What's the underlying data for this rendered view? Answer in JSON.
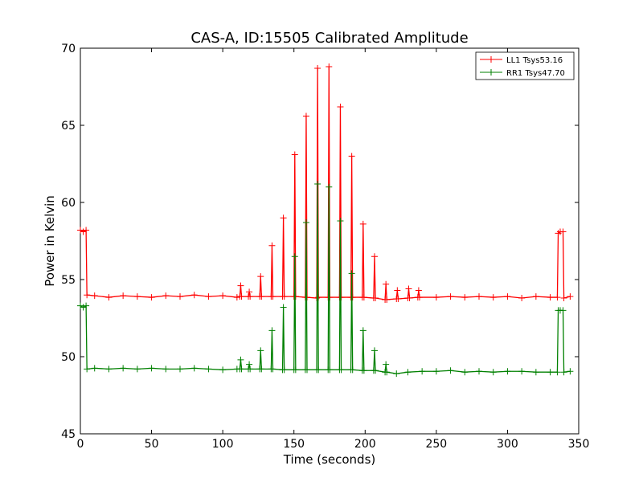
{
  "chart_data": {
    "type": "line",
    "title": "CAS-A, ID:15505 Calibrated Amplitude",
    "xlabel": "Time (seconds)",
    "ylabel": "Power in Kelvin",
    "xlim": [
      0,
      350
    ],
    "ylim": [
      45,
      70
    ],
    "xticks": [
      0,
      50,
      100,
      150,
      200,
      250,
      300,
      350
    ],
    "yticks": [
      45,
      50,
      55,
      60,
      65,
      70
    ],
    "grid": false,
    "legend_position": "top-right",
    "series": [
      {
        "name": "LL1 Tsys53.16",
        "color": "#ff0000",
        "marker": "+",
        "points": [
          [
            0,
            58.2
          ],
          [
            2,
            58.1
          ],
          [
            4,
            58.2
          ],
          [
            4.6,
            54.0
          ],
          [
            10,
            53.95
          ],
          [
            20,
            53.85
          ],
          [
            30,
            53.95
          ],
          [
            40,
            53.9
          ],
          [
            50,
            53.85
          ],
          [
            60,
            53.95
          ],
          [
            70,
            53.9
          ],
          [
            80,
            54.0
          ],
          [
            90,
            53.9
          ],
          [
            100,
            53.95
          ],
          [
            110,
            53.85
          ],
          [
            112,
            53.9
          ],
          [
            112.6,
            54.6
          ],
          [
            113.2,
            53.9
          ],
          [
            118,
            53.9
          ],
          [
            118.6,
            54.2
          ],
          [
            119.2,
            53.9
          ],
          [
            126,
            53.9
          ],
          [
            126.6,
            55.2
          ],
          [
            127.2,
            53.9
          ],
          [
            134,
            53.9
          ],
          [
            134.6,
            57.2
          ],
          [
            135.2,
            53.9
          ],
          [
            142,
            53.9
          ],
          [
            142.6,
            59.0
          ],
          [
            143.2,
            53.9
          ],
          [
            150,
            53.9
          ],
          [
            150.6,
            63.1
          ],
          [
            151.2,
            53.9
          ],
          [
            158,
            53.85
          ],
          [
            158.6,
            65.6
          ],
          [
            159.2,
            53.85
          ],
          [
            166,
            53.8
          ],
          [
            166.6,
            68.7
          ],
          [
            167.2,
            53.85
          ],
          [
            174,
            53.85
          ],
          [
            174.6,
            68.8
          ],
          [
            175.2,
            53.85
          ],
          [
            182,
            53.85
          ],
          [
            182.6,
            66.2
          ],
          [
            183.2,
            53.85
          ],
          [
            190,
            53.85
          ],
          [
            190.6,
            63.0
          ],
          [
            191.2,
            53.85
          ],
          [
            198,
            53.85
          ],
          [
            198.6,
            58.6
          ],
          [
            199.2,
            53.85
          ],
          [
            206,
            53.8
          ],
          [
            206.6,
            56.5
          ],
          [
            207.2,
            53.8
          ],
          [
            214,
            53.7
          ],
          [
            214.6,
            54.7
          ],
          [
            215.2,
            53.7
          ],
          [
            222,
            53.75
          ],
          [
            222.6,
            54.3
          ],
          [
            223.2,
            53.75
          ],
          [
            230,
            53.8
          ],
          [
            230.6,
            54.4
          ],
          [
            231.2,
            53.8
          ],
          [
            237,
            53.85
          ],
          [
            237.6,
            54.3
          ],
          [
            238.2,
            53.85
          ],
          [
            250,
            53.85
          ],
          [
            260,
            53.9
          ],
          [
            270,
            53.85
          ],
          [
            280,
            53.9
          ],
          [
            290,
            53.85
          ],
          [
            300,
            53.9
          ],
          [
            310,
            53.8
          ],
          [
            320,
            53.9
          ],
          [
            330,
            53.85
          ],
          [
            335,
            53.85
          ],
          [
            335.6,
            58.0
          ],
          [
            337,
            58.1
          ],
          [
            339,
            58.1
          ],
          [
            339.6,
            53.8
          ],
          [
            344,
            53.9
          ]
        ]
      },
      {
        "name": "RR1 Tsys47.70",
        "color": "#008000",
        "marker": "+",
        "points": [
          [
            0,
            53.3
          ],
          [
            2,
            53.2
          ],
          [
            4,
            53.3
          ],
          [
            4.6,
            49.2
          ],
          [
            10,
            49.25
          ],
          [
            20,
            49.2
          ],
          [
            30,
            49.25
          ],
          [
            40,
            49.2
          ],
          [
            50,
            49.25
          ],
          [
            60,
            49.2
          ],
          [
            70,
            49.2
          ],
          [
            80,
            49.25
          ],
          [
            90,
            49.2
          ],
          [
            100,
            49.15
          ],
          [
            110,
            49.2
          ],
          [
            112,
            49.2
          ],
          [
            112.6,
            49.8
          ],
          [
            113.2,
            49.2
          ],
          [
            118,
            49.2
          ],
          [
            118.6,
            49.5
          ],
          [
            119.2,
            49.2
          ],
          [
            126,
            49.2
          ],
          [
            126.6,
            50.4
          ],
          [
            127.2,
            49.2
          ],
          [
            134,
            49.2
          ],
          [
            134.6,
            51.7
          ],
          [
            135.2,
            49.2
          ],
          [
            142,
            49.15
          ],
          [
            142.6,
            53.2
          ],
          [
            143.2,
            49.15
          ],
          [
            150,
            49.15
          ],
          [
            150.6,
            56.5
          ],
          [
            151.2,
            49.15
          ],
          [
            158,
            49.15
          ],
          [
            158.6,
            58.7
          ],
          [
            159.2,
            49.15
          ],
          [
            166,
            49.15
          ],
          [
            166.6,
            61.2
          ],
          [
            167.2,
            49.15
          ],
          [
            174,
            49.15
          ],
          [
            174.6,
            61.0
          ],
          [
            175.2,
            49.15
          ],
          [
            182,
            49.15
          ],
          [
            182.6,
            58.8
          ],
          [
            183.2,
            49.15
          ],
          [
            190,
            49.15
          ],
          [
            190.6,
            55.4
          ],
          [
            191.2,
            49.15
          ],
          [
            198,
            49.1
          ],
          [
            198.6,
            51.7
          ],
          [
            199.2,
            49.1
          ],
          [
            206,
            49.1
          ],
          [
            206.6,
            50.4
          ],
          [
            207.2,
            49.1
          ],
          [
            214,
            49.0
          ],
          [
            214.6,
            49.5
          ],
          [
            215.2,
            49.0
          ],
          [
            222,
            48.9
          ],
          [
            230,
            49.0
          ],
          [
            240,
            49.05
          ],
          [
            250,
            49.05
          ],
          [
            260,
            49.1
          ],
          [
            270,
            49.0
          ],
          [
            280,
            49.05
          ],
          [
            290,
            49.0
          ],
          [
            300,
            49.05
          ],
          [
            310,
            49.05
          ],
          [
            320,
            49.0
          ],
          [
            330,
            49.0
          ],
          [
            335,
            49.0
          ],
          [
            335.6,
            53.0
          ],
          [
            337,
            53.0
          ],
          [
            339,
            53.0
          ],
          [
            339.6,
            49.0
          ],
          [
            344,
            49.05
          ]
        ]
      }
    ]
  }
}
